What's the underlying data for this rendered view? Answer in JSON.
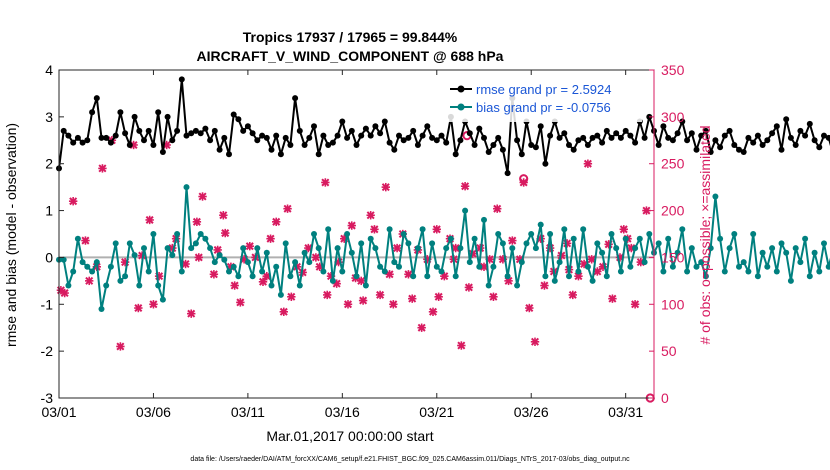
{
  "chart_data": {
    "type": "line",
    "title_line1": "Tropics 17937 / 17965 = 99.844%",
    "title_line2": "AIRCRAFT_V_WIND_COMPONENT @ 688 hPa",
    "xlabel": "Mar.01,2017 00:00:00 start",
    "ylabel_left": "rmse and bias (model - observation)",
    "ylabel_right": "# of obs: o=possible; ×=assimilated",
    "footnote": "data file: /Users/raeder/DAI/ATM_forcXX/CAM6_setup/f.e21.FHIST_BGC.f09_025.CAM6assim.011/Diags_NTrS_2017-03/obs_diag_output.nc",
    "xlim": [
      0,
      31.5
    ],
    "ylim_left": [
      -3,
      4
    ],
    "ylim_right": [
      0,
      350
    ],
    "x_ticks": [
      0,
      5,
      10,
      15,
      20,
      25,
      30
    ],
    "x_tick_labels": [
      "03/01",
      "03/06",
      "03/11",
      "03/16",
      "03/21",
      "03/26",
      "03/31"
    ],
    "y_left_ticks": [
      -3,
      -2,
      -1,
      0,
      1,
      2,
      3,
      4
    ],
    "y_left_tick_labels": [
      "-3",
      "-2",
      "-1",
      "0",
      "1",
      "2",
      "3",
      "4"
    ],
    "y_right_ticks": [
      0,
      50,
      100,
      150,
      200,
      250,
      300,
      350
    ],
    "y_right_tick_labels": [
      "0",
      "50",
      "100",
      "150",
      "200",
      "250",
      "300",
      "350"
    ],
    "legend": [
      {
        "name": "rmse grand pr = 2.5924",
        "color": "#000000"
      },
      {
        "name": "bias grand pr = -0.0756",
        "color": "#00807f"
      }
    ],
    "colors": {
      "rmse": "#000000",
      "bias": "#00807f",
      "obs": "#d81b60",
      "zero_line": "#b0b0b0"
    },
    "series": [
      {
        "name": "rmse",
        "x_start": 0,
        "x_step": 0.25,
        "values": [
          1.9,
          2.7,
          2.6,
          2.45,
          2.55,
          2.45,
          2.5,
          3.1,
          3.4,
          2.55,
          2.55,
          2.45,
          2.6,
          3.1,
          2.65,
          2.4,
          3.0,
          2.7,
          2.5,
          2.7,
          2.4,
          3.1,
          2.25,
          3.0,
          2.5,
          2.7,
          3.8,
          2.6,
          2.65,
          2.7,
          2.65,
          2.75,
          2.5,
          2.7,
          2.3,
          2.55,
          2.2,
          3.05,
          2.95,
          2.7,
          2.8,
          2.65,
          2.5,
          2.6,
          2.55,
          2.3,
          2.6,
          2.2,
          2.55,
          2.4,
          3.4,
          2.7,
          2.4,
          2.55,
          2.8,
          2.2,
          2.6,
          2.4,
          2.45,
          2.6,
          2.9,
          2.55,
          2.7,
          2.4,
          2.6,
          2.75,
          2.6,
          2.8,
          2.65,
          2.9,
          2.45,
          2.3,
          2.6,
          2.5,
          2.55,
          2.7,
          2.4,
          2.6,
          2.8,
          2.55,
          2.5,
          2.6,
          2.45,
          3.0,
          2.2,
          2.5,
          2.9,
          2.65,
          2.4,
          2.75,
          2.55,
          2.25,
          2.4,
          2.55,
          2.3,
          1.8,
          3.4,
          2.5,
          2.2,
          2.9,
          2.4,
          2.35,
          2.8,
          2.0,
          2.6,
          2.9,
          2.55,
          2.65,
          2.4,
          2.3,
          2.5,
          2.55,
          2.4,
          2.55,
          2.6,
          2.45,
          2.7,
          2.55,
          2.65,
          2.55,
          2.7,
          2.6,
          2.45,
          2.9,
          2.55,
          3.0,
          2.7,
          2.4,
          2.8,
          2.55,
          2.5,
          2.65,
          2.9,
          2.5,
          2.65,
          2.3,
          2.6,
          2.7,
          2.25,
          2.5,
          2.35,
          2.6,
          2.7,
          2.4,
          2.3,
          2.25,
          2.55,
          2.45,
          2.6,
          2.4,
          2.5,
          2.65,
          2.8,
          2.3,
          2.95,
          2.55,
          2.4,
          2.7,
          2.6,
          2.85,
          2.5,
          2.35,
          2.6,
          2.55,
          2.2,
          2.8,
          2.45,
          2.55,
          2.4,
          2.7,
          2.35,
          2.6,
          2.0,
          3.2,
          2.7,
          2.55,
          2.3,
          2.6,
          2.9,
          2.4,
          2.6,
          2.55,
          2.3,
          2.7,
          2.5,
          2.55,
          2.75,
          3.0,
          2.6,
          2.9,
          2.4,
          2.5,
          2.55,
          2.6,
          2.7,
          2.75,
          3.35,
          3.0,
          2.7,
          2.55,
          3.1,
          3.05,
          2.6,
          2.95
        ]
      },
      {
        "name": "bias",
        "x_start": 0,
        "x_step": 0.25,
        "values": [
          -0.05,
          -0.05,
          -0.6,
          -0.3,
          0.4,
          -0.1,
          -0.2,
          -0.3,
          -0.1,
          -1.1,
          -0.6,
          -0.2,
          0.3,
          -0.5,
          -0.4,
          0.3,
          0.05,
          -0.6,
          0.2,
          -0.3,
          0.5,
          -0.6,
          -0.9,
          0.2,
          0.05,
          0.5,
          -0.3,
          1.5,
          0.2,
          0.3,
          0.5,
          0.4,
          0.2,
          -0.1,
          0.05,
          -0.05,
          -0.3,
          -0.2,
          -0.4,
          0.2,
          -0.1,
          -0.4,
          0.2,
          -0.3,
          0.1,
          -0.6,
          -0.2,
          -0.8,
          0.3,
          -0.4,
          -0.1,
          -0.6,
          0.1,
          -0.1,
          0.5,
          0.2,
          -0.3,
          0.6,
          -0.5,
          0.2,
          -0.3,
          0.5,
          0.1,
          -0.4,
          0.3,
          -0.6,
          0.4,
          0.2,
          -0.2,
          -0.3,
          0.6,
          -0.1,
          -0.2,
          0.5,
          0.3,
          -0.4,
          0.2,
          0.6,
          -0.4,
          0.3,
          -0.2,
          -0.3,
          0.2,
          0.4,
          -0.4,
          0.2,
          1.0,
          -0.1,
          0.4,
          -0.2,
          0.8,
          -0.6,
          -0.2,
          0.5,
          0.3,
          -0.4,
          0.2,
          -0.6,
          -0.1,
          0.3,
          0.5,
          0.2,
          0.7,
          -0.4,
          0.5,
          -0.5,
          -0.1,
          0.6,
          -0.4,
          0.4,
          -0.3,
          0.6,
          -0.2,
          -0.5,
          0.3,
          0.1,
          -0.4,
          0.5,
          0.2,
          -0.3,
          0.4,
          -0.2,
          0.2,
          0.4,
          -0.1,
          0.5,
          0.1,
          0.3,
          -0.3,
          0.4,
          -0.2,
          0.1,
          0.6,
          -0.3,
          0.2,
          -0.2,
          -0.1,
          -0.4,
          0.2,
          1.3,
          0.4,
          -0.3,
          0.2,
          0.5,
          -0.2,
          -0.1,
          -0.3,
          0.5,
          -0.4,
          0.1,
          -0.2,
          0.2,
          -0.3,
          0.3,
          0.1,
          -0.5,
          0.2,
          -0.1,
          0.4,
          -0.4,
          0.1,
          -0.3,
          0.3,
          -0.2,
          0.2,
          0.6,
          -0.1,
          -0.4,
          0.1,
          -0.3,
          0.2,
          -0.7,
          0.4,
          -0.3,
          0.1,
          -0.4,
          0.5,
          -0.3,
          -0.1,
          0.2,
          0.1,
          -0.4,
          0.4,
          0.2,
          -0.6,
          -0.1,
          -0.5,
          0.3,
          -0.2,
          0.4,
          0.1,
          -0.2,
          0.7,
          -0.4,
          0.5,
          0.1,
          -0.3,
          0.4,
          0.7,
          -0.2,
          0.9,
          1.15,
          0.7,
          0.4
        ]
      },
      {
        "name": "obs assimilated",
        "marker": "×",
        "points": [
          [
            0.1,
            115
          ],
          [
            0.3,
            112
          ],
          [
            0.75,
            210
          ],
          [
            1.4,
            168
          ],
          [
            1.6,
            125
          ],
          [
            2.0,
            140
          ],
          [
            2.3,
            245
          ],
          [
            2.8,
            275
          ],
          [
            3.25,
            55
          ],
          [
            3.5,
            145
          ],
          [
            3.95,
            270
          ],
          [
            4.2,
            96
          ],
          [
            4.4,
            152
          ],
          [
            4.8,
            190
          ],
          [
            5.0,
            100
          ],
          [
            5.3,
            130
          ],
          [
            5.7,
            270
          ],
          [
            6.0,
            160
          ],
          [
            6.2,
            170
          ],
          [
            6.7,
            143
          ],
          [
            7.0,
            90
          ],
          [
            7.3,
            188
          ],
          [
            7.4,
            150
          ],
          [
            7.6,
            215
          ],
          [
            8.2,
            132
          ],
          [
            8.4,
            158
          ],
          [
            8.7,
            195
          ],
          [
            8.8,
            176
          ],
          [
            9.1,
            140
          ],
          [
            9.3,
            120
          ],
          [
            9.6,
            102
          ],
          [
            9.8,
            148
          ],
          [
            10.1,
            162
          ],
          [
            10.4,
            150
          ],
          [
            10.8,
            124
          ],
          [
            11.0,
            130
          ],
          [
            11.2,
            170
          ],
          [
            11.5,
            188
          ],
          [
            11.9,
            92
          ],
          [
            12.1,
            202
          ],
          [
            12.3,
            108
          ],
          [
            12.6,
            140
          ],
          [
            12.9,
            134
          ],
          [
            13.2,
            160
          ],
          [
            13.6,
            150
          ],
          [
            13.8,
            140
          ],
          [
            14.1,
            230
          ],
          [
            14.2,
            110
          ],
          [
            14.4,
            130
          ],
          [
            14.7,
            122
          ],
          [
            14.8,
            145
          ],
          [
            15.1,
            170
          ],
          [
            15.3,
            100
          ],
          [
            15.5,
            184
          ],
          [
            15.7,
            128
          ],
          [
            16.0,
            125
          ],
          [
            16.1,
            104
          ],
          [
            16.5,
            195
          ],
          [
            16.7,
            180
          ],
          [
            17.0,
            110
          ],
          [
            17.3,
            225
          ],
          [
            17.5,
            132
          ],
          [
            17.7,
            100
          ],
          [
            17.9,
            160
          ],
          [
            18.2,
            175
          ],
          [
            18.5,
            132
          ],
          [
            18.7,
            106
          ],
          [
            19.0,
            158
          ],
          [
            19.2,
            75
          ],
          [
            19.5,
            148
          ],
          [
            19.8,
            92
          ],
          [
            20.0,
            180
          ],
          [
            20.1,
            108
          ],
          [
            20.4,
            130
          ],
          [
            20.7,
            170
          ],
          [
            20.9,
            148
          ],
          [
            21.0,
            160
          ],
          [
            21.3,
            56
          ],
          [
            21.5,
            226
          ],
          [
            21.7,
            118
          ],
          [
            21.9,
            154
          ],
          [
            22.3,
            160
          ],
          [
            22.5,
            140
          ],
          [
            22.8,
            148
          ],
          [
            23.0,
            108
          ],
          [
            23.2,
            202
          ],
          [
            23.5,
            148
          ],
          [
            23.8,
            125
          ],
          [
            24.0,
            168
          ],
          [
            24.4,
            148
          ],
          [
            24.6,
            230
          ],
          [
            24.9,
            96
          ],
          [
            25.2,
            60
          ],
          [
            25.5,
            170
          ],
          [
            25.7,
            120
          ],
          [
            26.0,
            160
          ],
          [
            26.2,
            135
          ],
          [
            26.6,
            152
          ],
          [
            26.9,
            165
          ],
          [
            27.0,
            137
          ],
          [
            27.2,
            110
          ],
          [
            27.5,
            130
          ],
          [
            27.8,
            143
          ],
          [
            28.0,
            250
          ],
          [
            28.2,
            148
          ],
          [
            28.5,
            135
          ],
          [
            28.8,
            140
          ],
          [
            29.1,
            164
          ],
          [
            29.3,
            106
          ],
          [
            29.7,
            150
          ],
          [
            29.9,
            180
          ],
          [
            30.1,
            170
          ],
          [
            30.3,
            160
          ],
          [
            30.5,
            100
          ],
          [
            30.8,
            145
          ],
          [
            31.1,
            200
          ]
        ]
      },
      {
        "name": "obs possible",
        "marker": "o",
        "points": [
          [
            21.6,
            280
          ],
          [
            24.6,
            234
          ],
          [
            31.3,
            0
          ]
        ]
      }
    ]
  }
}
